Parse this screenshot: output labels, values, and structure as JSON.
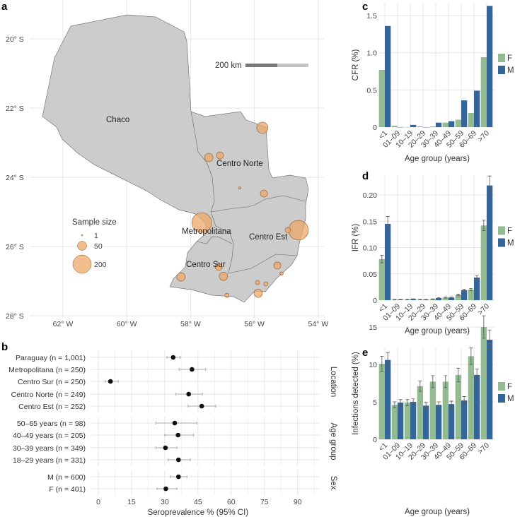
{
  "colors": {
    "F": "#93bb92",
    "M": "#346699",
    "site_fill": "#eda868",
    "site_stroke": "#8a5a30",
    "land": "#cccccc"
  },
  "panel_labels": {
    "a": "a",
    "b": "b",
    "c": "c",
    "d": "d",
    "e": "e"
  },
  "chart_data": [
    {
      "panel": "a",
      "type": "map",
      "lat_ticks": [
        "20° S",
        "22° S",
        "24° S",
        "26° S",
        "28° S"
      ],
      "lon_ticks": [
        "62° W",
        "60° W",
        "58° W",
        "56° W",
        "54° W"
      ],
      "regions": [
        "Chaco",
        "Centro Norte",
        "Metropolitana",
        "Centro Est",
        "Centro Sur"
      ],
      "scale_bar": "200 km",
      "legend": {
        "title": "Sample size",
        "entries": [
          {
            "label": "1",
            "n": 1
          },
          {
            "label": "50",
            "n": 50
          },
          {
            "label": "200",
            "n": 200
          }
        ]
      },
      "sites": [
        {
          "lon": -55.75,
          "lat": -22.57,
          "n": 75
        },
        {
          "lon": -57.43,
          "lat": -23.43,
          "n": 42
        },
        {
          "lon": -57.08,
          "lat": -23.37,
          "n": 30
        },
        {
          "lon": -56.46,
          "lat": -24.31,
          "n": 3
        },
        {
          "lon": -55.7,
          "lat": -24.47,
          "n": 30
        },
        {
          "lon": -57.65,
          "lat": -25.31,
          "n": 230
        },
        {
          "lon": -54.62,
          "lat": -25.53,
          "n": 230
        },
        {
          "lon": -54.95,
          "lat": -25.53,
          "n": 19
        },
        {
          "lon": -57.12,
          "lat": -26.59,
          "n": 30
        },
        {
          "lon": -56.97,
          "lat": -26.86,
          "n": 42
        },
        {
          "lon": -58.3,
          "lat": -26.88,
          "n": 42
        },
        {
          "lon": -55.28,
          "lat": -26.55,
          "n": 30
        },
        {
          "lon": -55.15,
          "lat": -26.78,
          "n": 7
        },
        {
          "lon": -55.9,
          "lat": -27.04,
          "n": 11
        },
        {
          "lon": -55.64,
          "lat": -27.08,
          "n": 11
        },
        {
          "lon": -55.88,
          "lat": -27.35,
          "n": 42
        },
        {
          "lon": -56.86,
          "lat": -27.41,
          "n": 11
        }
      ]
    },
    {
      "panel": "b",
      "type": "scatter",
      "xlabel": "Seroprevalence % (95% CI)",
      "x_ticks": [
        "0",
        "15",
        "30",
        "45",
        "60",
        "75",
        "90"
      ],
      "xlim": [
        0,
        100
      ],
      "facets": [
        {
          "label": "Location",
          "rows": [
            {
              "label": "Paraguay (n = 1,001)",
              "name": "Paraguay",
              "n": "1,001",
              "est": 33.8,
              "lo": 31,
              "hi": 37
            },
            {
              "label": "Metropolitana (n = 250)",
              "name": "Metropolitana",
              "n": "250",
              "est": 42.3,
              "lo": 36.5,
              "hi": 48.5
            },
            {
              "label": "Centro Sur (n = 250)",
              "name": "Centro Sur",
              "n": "250",
              "est": 5.5,
              "lo": 3,
              "hi": 9
            },
            {
              "label": "Centro Norte (n = 249)",
              "name": "Centro Norte",
              "n": "249",
              "est": 40.8,
              "lo": 35,
              "hi": 47
            },
            {
              "label": "Centro Est (n = 252)",
              "name": "Centro Est",
              "n": "252",
              "est": 46.7,
              "lo": 40.5,
              "hi": 53
            }
          ]
        },
        {
          "label": "Age group",
          "rows": [
            {
              "label": "50–65 years (n = 98)",
              "name": "50–65 years",
              "n": "98",
              "est": 34.5,
              "lo": 26,
              "hi": 44.5
            },
            {
              "label": "40–49 years (n = 205)",
              "name": "40–49 years",
              "n": "205",
              "est": 36,
              "lo": 30,
              "hi": 43
            },
            {
              "label": "30–39 years (n = 349)",
              "name": "30–39 years",
              "n": "349",
              "est": 30.3,
              "lo": 26,
              "hi": 35.5
            },
            {
              "label": "18–29 years (n = 331)",
              "name": "18–29 years",
              "n": "331",
              "est": 36.2,
              "lo": 31.5,
              "hi": 41.5
            }
          ]
        },
        {
          "label": "Sex",
          "rows": [
            {
              "label": "M (n = 600)",
              "name": "M",
              "n": "600",
              "est": 36.2,
              "lo": 32.5,
              "hi": 40
            },
            {
              "label": "F (n = 401)",
              "name": "F",
              "n": "401",
              "est": 30.5,
              "lo": 26.5,
              "hi": 35.5
            }
          ]
        }
      ]
    },
    {
      "panel": "c",
      "type": "bar",
      "ylabel": "CFR (%)",
      "xlabel": "Age group (years)",
      "categories": [
        "<1",
        "01–09",
        "10–19",
        "20–29",
        "30–39",
        "40–49",
        "50–59",
        "60–69",
        ">70"
      ],
      "y_ticks": [
        "0",
        "0.5",
        "1.0",
        "1.5"
      ],
      "y_tick_values": [
        0,
        0.5,
        1.0,
        1.5
      ],
      "ylim": [
        0,
        1.65
      ],
      "legend": [
        "F",
        "M"
      ],
      "series": [
        {
          "name": "F",
          "values": [
            0.77,
            0.02,
            0.0,
            0.01,
            0.01,
            0.06,
            0.1,
            0.19,
            0.94
          ]
        },
        {
          "name": "M",
          "values": [
            1.36,
            0.0,
            0.03,
            0.0,
            0.06,
            0.08,
            0.36,
            0.49,
            1.63
          ]
        }
      ]
    },
    {
      "panel": "d",
      "type": "bar",
      "ylabel": "IFR (%)",
      "xlabel": "Age group (years)",
      "categories": [
        "<1",
        "01–09",
        "10–19",
        "20–29",
        "30–39",
        "40–49",
        "50–59",
        "60–69",
        ">70"
      ],
      "y_ticks": [
        "0",
        "0.05",
        "0.10",
        "0.15",
        "0.20"
      ],
      "y_tick_values": [
        0,
        0.05,
        0.1,
        0.15,
        0.2
      ],
      "ylim": [
        0,
        0.24
      ],
      "legend": [
        "F",
        "M"
      ],
      "series": [
        {
          "name": "F",
          "values": [
            0.078,
            0.001,
            0.001,
            0.001,
            0.002,
            0.005,
            0.01,
            0.02,
            0.142
          ],
          "err": [
            0.007,
            0.0005,
            0.0005,
            0.0005,
            0.0005,
            0.001,
            0.0015,
            0.002,
            0.01
          ]
        },
        {
          "name": "M",
          "values": [
            0.145,
            0.001,
            0.002,
            0.001,
            0.004,
            0.005,
            0.019,
            0.043,
            0.218
          ],
          "err": [
            0.014,
            0.0005,
            0.0005,
            0.0005,
            0.0005,
            0.001,
            0.002,
            0.004,
            0.018
          ]
        }
      ]
    },
    {
      "panel": "e",
      "type": "bar",
      "ylabel": "Infections detected (%)",
      "xlabel": "Age group (years)",
      "categories": [
        "<1",
        "01–09",
        "10–19",
        "20–29",
        "30–39",
        "40–49",
        "50–59",
        "60–69",
        ">70"
      ],
      "y_ticks": [
        "0",
        "5",
        "10",
        "15"
      ],
      "y_tick_values": [
        0,
        5,
        10,
        15
      ],
      "ylim": [
        0,
        16.5
      ],
      "legend": [
        "F",
        "M"
      ],
      "series": [
        {
          "name": "F",
          "values": [
            10.1,
            4.6,
            4.9,
            7.1,
            7.7,
            7.7,
            8.6,
            11.1,
            15.0
          ],
          "err": [
            1.0,
            0.4,
            0.4,
            0.7,
            0.8,
            0.8,
            0.9,
            1.1,
            1.5
          ]
        },
        {
          "name": "M",
          "values": [
            10.6,
            4.9,
            5.0,
            4.5,
            4.6,
            4.7,
            5.2,
            8.6,
            13.3
          ],
          "err": [
            1.0,
            0.4,
            0.4,
            0.4,
            0.4,
            0.4,
            0.5,
            0.8,
            1.3
          ]
        }
      ]
    }
  ]
}
